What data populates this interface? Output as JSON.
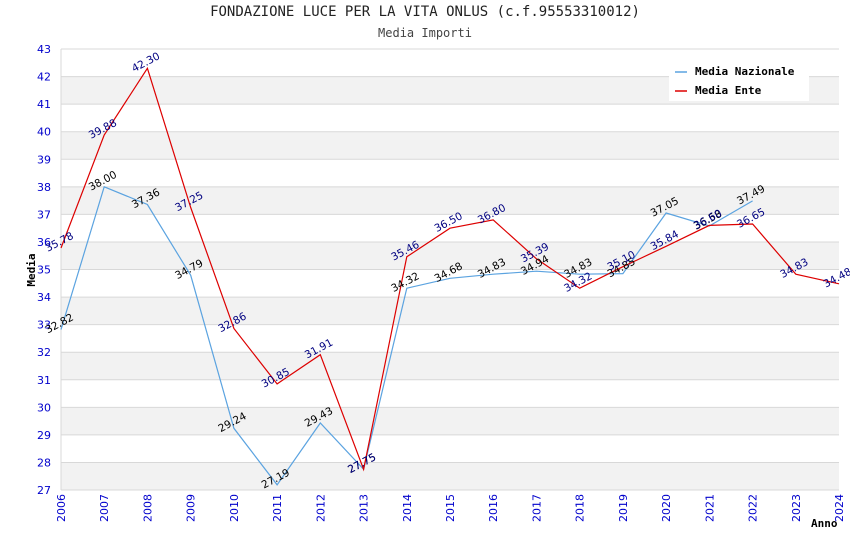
{
  "chart_data": {
    "type": "line",
    "title": "FONDAZIONE LUCE PER LA VITA ONLUS (c.f.95553310012)",
    "subtitle": "Media Importi",
    "xlabel": "Anno",
    "ylabel": "Media",
    "ylim": [
      27,
      43
    ],
    "yticks": [
      "27",
      "28",
      "29",
      "30",
      "31",
      "32",
      "33",
      "34",
      "35",
      "36",
      "37",
      "38",
      "39",
      "40",
      "41",
      "42",
      "43"
    ],
    "x": [
      "2006",
      "2007",
      "2008",
      "2009",
      "2010",
      "2011",
      "2012",
      "2013",
      "2014",
      "2015",
      "2016",
      "2017",
      "2018",
      "2019",
      "2020",
      "2021",
      "2022",
      "2023",
      "2024"
    ],
    "grid": true,
    "legend_position": "top-right",
    "series": [
      {
        "name": "Media Nazionale",
        "color": "#5ba3e0",
        "label_color": "#000000",
        "values": [
          32.82,
          38.0,
          37.36,
          34.79,
          29.24,
          27.19,
          29.43,
          27.75,
          34.32,
          34.68,
          34.83,
          34.94,
          34.83,
          34.85,
          37.05,
          36.58,
          37.49,
          null,
          null
        ],
        "labels": [
          "32.82",
          "38.00",
          "37.36",
          "34.79",
          "29.24",
          "27.19",
          "29.43",
          "27.75",
          "34.32",
          "34.68",
          "34.83",
          "34.94",
          "34.83",
          "34.85",
          "37.05",
          "36.58",
          "37.49",
          "",
          ""
        ]
      },
      {
        "name": "Media Ente",
        "color": "#dd0000",
        "label_color": "#000080",
        "values": [
          35.78,
          39.88,
          42.3,
          37.25,
          32.86,
          30.85,
          31.91,
          27.75,
          35.46,
          36.5,
          36.8,
          35.39,
          34.32,
          35.1,
          35.84,
          36.6,
          36.65,
          34.83,
          34.48
        ],
        "labels": [
          "35.78",
          "39.88",
          "42.30",
          "37.25",
          "32.86",
          "30.85",
          "31.91",
          "27.75",
          "35.46",
          "36.50",
          "36.80",
          "35.39",
          "34.32",
          "35.10",
          "35.84",
          "36.60",
          "36.65",
          "34.83",
          "34.48"
        ]
      }
    ]
  }
}
